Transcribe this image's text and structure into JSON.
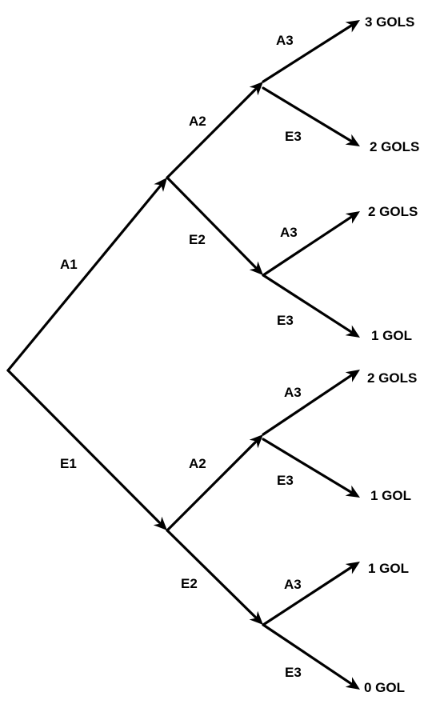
{
  "edges": {
    "root_a1": "A1",
    "root_e1": "E1",
    "a1_a2": "A2",
    "a1_e2": "E2",
    "e1_a2": "A2",
    "e1_e2": "E2",
    "a1a2_a3": "A3",
    "a1a2_e3": "E3",
    "a1e2_a3": "A3",
    "a1e2_e3": "E3",
    "e1a2_a3": "A3",
    "e1a2_e3": "E3",
    "e1e2_a3": "A3",
    "e1e2_e3": "E3"
  },
  "outcomes": {
    "a1_a2_a3": "3 GOLS",
    "a1_a2_e3": "2 GOLS",
    "a1_e2_a3": "2 GOLS",
    "a1_e2_e3": "1 GOL",
    "e1_a2_a3": "2 GOLS",
    "e1_a2_e3": "1 GOL",
    "e1_e2_a3": "1 GOL",
    "e1_e2_e3": "0 GOL"
  }
}
